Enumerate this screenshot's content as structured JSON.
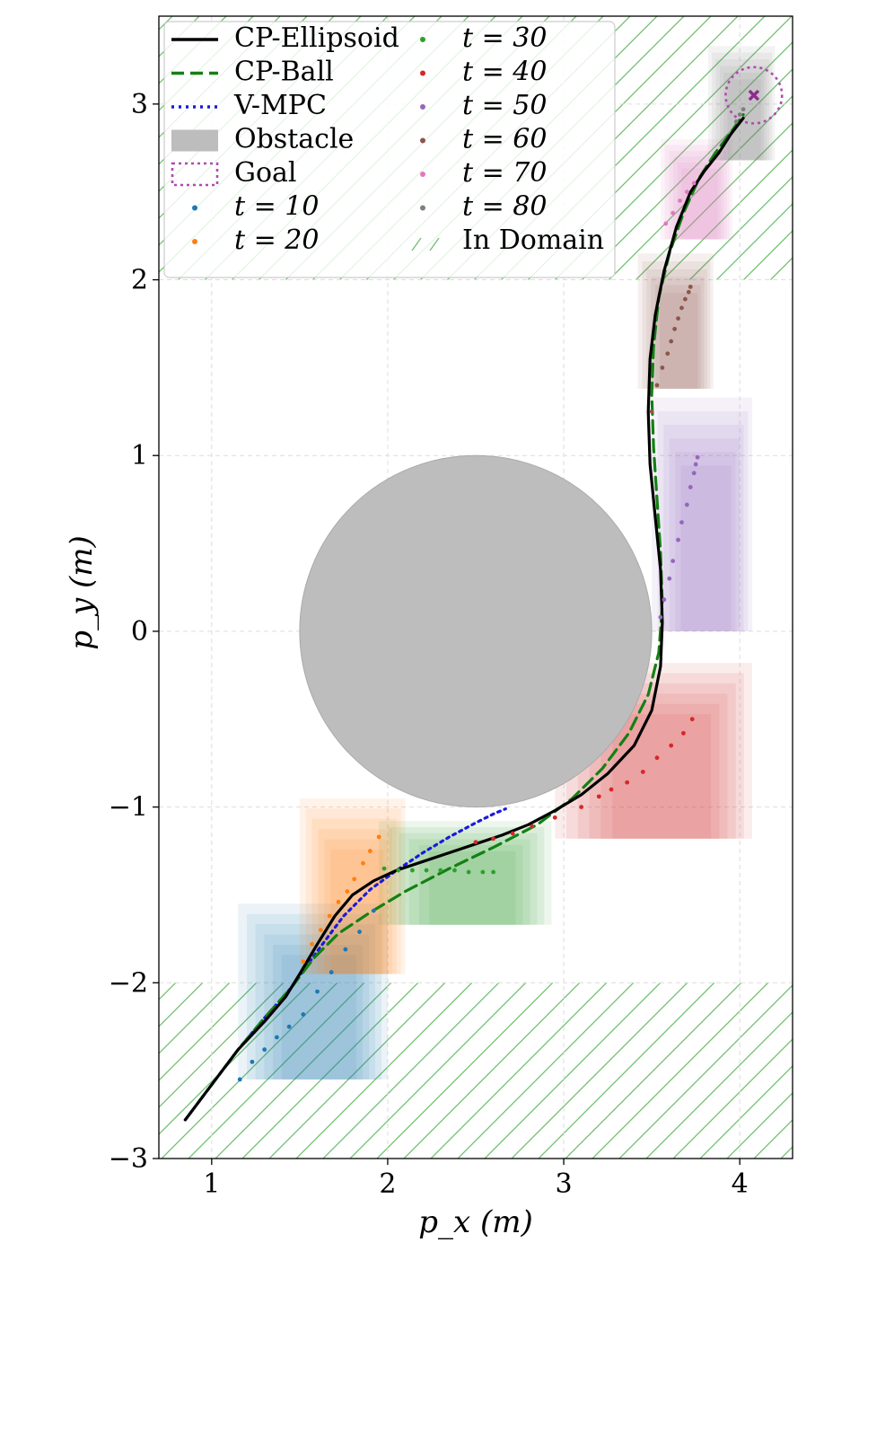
{
  "chart_data": {
    "type": "line",
    "xlabel": "p_x (m)",
    "ylabel": "p_y (m)",
    "xlim": [
      0.7,
      4.3
    ],
    "ylim": [
      -3.0,
      3.5
    ],
    "xticks": [
      "1",
      "2",
      "3",
      "4"
    ],
    "yticks": [
      "−3",
      "−2",
      "−1",
      "0",
      "1",
      "2",
      "3"
    ],
    "grid": true,
    "legend_position": "top-left",
    "legend": [
      {
        "label": "CP-Ellipsoid",
        "kind": "line",
        "color": "#000000",
        "dash": "solid"
      },
      {
        "label": "CP-Ball",
        "kind": "line",
        "color": "#138013",
        "dash": "dashed"
      },
      {
        "label": "V-MPC",
        "kind": "line",
        "color": "#1a1adb",
        "dash": "dotted"
      },
      {
        "label": "Obstacle",
        "kind": "patch",
        "color": "#bdbdbd"
      },
      {
        "label": "Goal",
        "kind": "dotted-patch",
        "color": "#b04ab0"
      },
      {
        "label": "t = 10",
        "kind": "dot",
        "color": "#1f77b4"
      },
      {
        "label": "t = 20",
        "kind": "dot",
        "color": "#ff7f0e"
      },
      {
        "label": "t = 30",
        "kind": "dot",
        "color": "#2ca02c"
      },
      {
        "label": "t = 40",
        "kind": "dot",
        "color": "#d62728"
      },
      {
        "label": "t = 50",
        "kind": "dot",
        "color": "#9467bd"
      },
      {
        "label": "t = 60",
        "kind": "dot",
        "color": "#8c564b"
      },
      {
        "label": "t = 70",
        "kind": "dot",
        "color": "#e377c2"
      },
      {
        "label": "t = 80",
        "kind": "dot",
        "color": "#7f7f7f"
      },
      {
        "label": "In Domain",
        "kind": "hatch",
        "color": "#6fbf6f"
      }
    ],
    "obstacle": {
      "center": [
        2.5,
        0.0
      ],
      "radius": 1.0,
      "color": "#bdbdbd"
    },
    "goal": {
      "center": [
        4.08,
        3.05
      ],
      "radius": 0.16,
      "color": "#b04ab0",
      "marker_color": "#8e2b8e"
    },
    "in_domain_regions": [
      {
        "y_range": [
          2.0,
          3.5
        ]
      },
      {
        "y_range": [
          -3.0,
          -2.0
        ]
      }
    ],
    "series": [
      {
        "name": "CP-Ellipsoid",
        "color": "#000000",
        "x": [
          0.85,
          1.0,
          1.15,
          1.3,
          1.42,
          1.5,
          1.6,
          1.7,
          1.8,
          1.92,
          2.05,
          2.2,
          2.35,
          2.5,
          2.65,
          2.8,
          2.95,
          3.1,
          3.25,
          3.4,
          3.5,
          3.55,
          3.56,
          3.55,
          3.52,
          3.49,
          3.48,
          3.49,
          3.52,
          3.57,
          3.64,
          3.72,
          3.8,
          3.88,
          3.95,
          4.02
        ],
        "y": [
          -2.78,
          -2.58,
          -2.38,
          -2.22,
          -2.08,
          -1.95,
          -1.78,
          -1.62,
          -1.5,
          -1.42,
          -1.36,
          -1.31,
          -1.26,
          -1.21,
          -1.16,
          -1.1,
          -1.02,
          -0.93,
          -0.81,
          -0.65,
          -0.45,
          -0.2,
          0.05,
          0.35,
          0.65,
          0.95,
          1.25,
          1.55,
          1.8,
          2.05,
          2.3,
          2.5,
          2.62,
          2.72,
          2.83,
          2.92
        ]
      },
      {
        "name": "CP-Ball",
        "color": "#138013",
        "x": [
          0.85,
          1.0,
          1.15,
          1.3,
          1.45,
          1.58,
          1.72,
          1.9,
          2.1,
          2.35,
          2.6,
          2.85,
          3.05,
          3.22,
          3.37,
          3.48,
          3.54,
          3.56,
          3.55,
          3.53,
          3.51,
          3.5,
          3.51,
          3.54,
          3.6,
          3.68,
          3.77,
          3.86,
          3.95,
          4.02
        ],
        "y": [
          -2.78,
          -2.58,
          -2.38,
          -2.2,
          -2.03,
          -1.86,
          -1.72,
          -1.6,
          -1.48,
          -1.35,
          -1.23,
          -1.1,
          -0.95,
          -0.78,
          -0.58,
          -0.36,
          -0.12,
          0.15,
          0.45,
          0.75,
          1.05,
          1.35,
          1.62,
          1.9,
          2.15,
          2.38,
          2.58,
          2.72,
          2.84,
          2.94
        ]
      },
      {
        "name": "V-MPC",
        "color": "#1a1adb",
        "x": [
          0.85,
          1.0,
          1.15,
          1.3,
          1.45,
          1.6,
          1.75,
          1.9,
          2.05,
          2.2,
          2.35,
          2.5,
          2.6,
          2.67
        ],
        "y": [
          -2.78,
          -2.58,
          -2.38,
          -2.2,
          -2.03,
          -1.82,
          -1.62,
          -1.47,
          -1.36,
          -1.26,
          -1.17,
          -1.09,
          -1.04,
          -1.01
        ]
      }
    ],
    "prediction_dots": [
      {
        "t": 10,
        "color": "#1f77b4",
        "x": [
          1.16,
          1.23,
          1.3,
          1.37,
          1.44,
          1.52,
          1.6,
          1.68,
          1.76,
          1.84,
          1.92
        ],
        "y": [
          -2.55,
          -2.45,
          -2.38,
          -2.31,
          -2.25,
          -2.18,
          -2.05,
          -1.94,
          -1.81,
          -1.71,
          -1.59
        ]
      },
      {
        "t": 20,
        "color": "#ff7f0e",
        "x": [
          1.52,
          1.57,
          1.62,
          1.67,
          1.72,
          1.77,
          1.81,
          1.86,
          1.9,
          1.95
        ],
        "y": [
          -1.88,
          -1.78,
          -1.7,
          -1.62,
          -1.54,
          -1.48,
          -1.41,
          -1.32,
          -1.25,
          -1.17
        ]
      },
      {
        "t": 30,
        "color": "#2ca02c",
        "x": [
          1.98,
          2.06,
          2.14,
          2.22,
          2.3,
          2.38,
          2.46,
          2.54,
          2.6
        ],
        "y": [
          -1.35,
          -1.36,
          -1.36,
          -1.36,
          -1.36,
          -1.36,
          -1.37,
          -1.37,
          -1.37
        ]
      },
      {
        "t": 40,
        "color": "#d62728",
        "x": [
          2.5,
          2.6,
          2.71,
          2.82,
          2.95,
          3.1,
          3.2,
          3.27,
          3.36,
          3.45,
          3.53,
          3.61,
          3.68,
          3.73
        ],
        "y": [
          -1.2,
          -1.18,
          -1.15,
          -1.11,
          -1.06,
          -1.0,
          -0.94,
          -0.9,
          -0.86,
          -0.8,
          -0.72,
          -0.65,
          -0.58,
          -0.5
        ]
      },
      {
        "t": 50,
        "color": "#9467bd",
        "x": [
          3.55,
          3.57,
          3.6,
          3.62,
          3.65,
          3.67,
          3.7,
          3.72,
          3.74,
          3.75,
          3.76
        ],
        "y": [
          0.08,
          0.18,
          0.3,
          0.4,
          0.52,
          0.62,
          0.72,
          0.82,
          0.9,
          0.95,
          0.99
        ]
      },
      {
        "t": 60,
        "color": "#8c564b",
        "x": [
          3.5,
          3.53,
          3.56,
          3.59,
          3.61,
          3.63,
          3.65,
          3.67,
          3.69,
          3.71,
          3.72
        ],
        "y": [
          1.25,
          1.4,
          1.5,
          1.58,
          1.65,
          1.72,
          1.78,
          1.84,
          1.89,
          1.93,
          1.96
        ]
      },
      {
        "t": 70,
        "color": "#e377c2",
        "x": [
          3.58,
          3.62,
          3.66,
          3.7,
          3.74
        ],
        "y": [
          2.32,
          2.38,
          2.45,
          2.5,
          2.55
        ]
      },
      {
        "t": 80,
        "color": "#7f7f7f",
        "x": [
          3.98,
          4.0,
          4.02
        ],
        "y": [
          2.9,
          2.94,
          2.97
        ]
      }
    ],
    "uncertainty_boxes": [
      {
        "t": 10,
        "color": "#1f77b4",
        "x0": 1.15,
        "x1": 2.0,
        "y0": -2.55,
        "y1": -1.55
      },
      {
        "t": 20,
        "color": "#ff7f0e",
        "x0": 1.5,
        "x1": 2.1,
        "y0": -1.95,
        "y1": -0.95
      },
      {
        "t": 30,
        "color": "#2ca02c",
        "x0": 1.95,
        "x1": 2.93,
        "y0": -1.67,
        "y1": -1.08
      },
      {
        "t": 40,
        "color": "#d62728",
        "x0": 2.95,
        "x1": 4.07,
        "y0": -1.18,
        "y1": -0.18
      },
      {
        "t": 50,
        "color": "#9467bd",
        "x0": 3.5,
        "x1": 4.07,
        "y0": 0.0,
        "y1": 1.33
      },
      {
        "t": 60,
        "color": "#8c564b",
        "x0": 3.42,
        "x1": 3.85,
        "y0": 1.38,
        "y1": 2.15
      },
      {
        "t": 70,
        "color": "#e377c2",
        "x0": 3.55,
        "x1": 3.96,
        "y0": 2.23,
        "y1": 2.8
      },
      {
        "t": 80,
        "color": "#7f7f7f",
        "x0": 3.82,
        "x1": 4.2,
        "y0": 2.68,
        "y1": 3.33
      }
    ]
  }
}
